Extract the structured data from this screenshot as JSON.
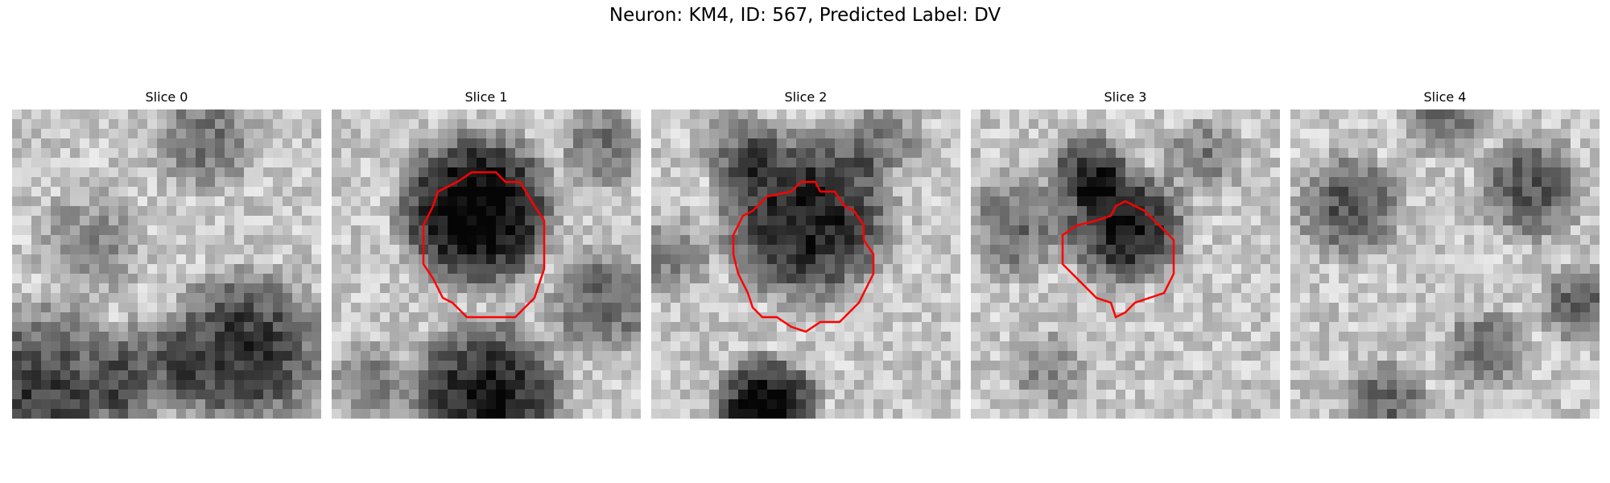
{
  "figure": {
    "suptitle": "Neuron: KM4, ID: 567, Predicted Label: DV"
  },
  "panels": [
    {
      "title": "Slice 0",
      "has_contour": false
    },
    {
      "title": "Slice 1",
      "has_contour": true
    },
    {
      "title": "Slice 2",
      "has_contour": true
    },
    {
      "title": "Slice 3",
      "has_contour": true
    },
    {
      "title": "Slice 4",
      "has_contour": false
    }
  ],
  "colors": {
    "contour": "#ff0000",
    "background": "#ffffff"
  },
  "colormap": "gray"
}
